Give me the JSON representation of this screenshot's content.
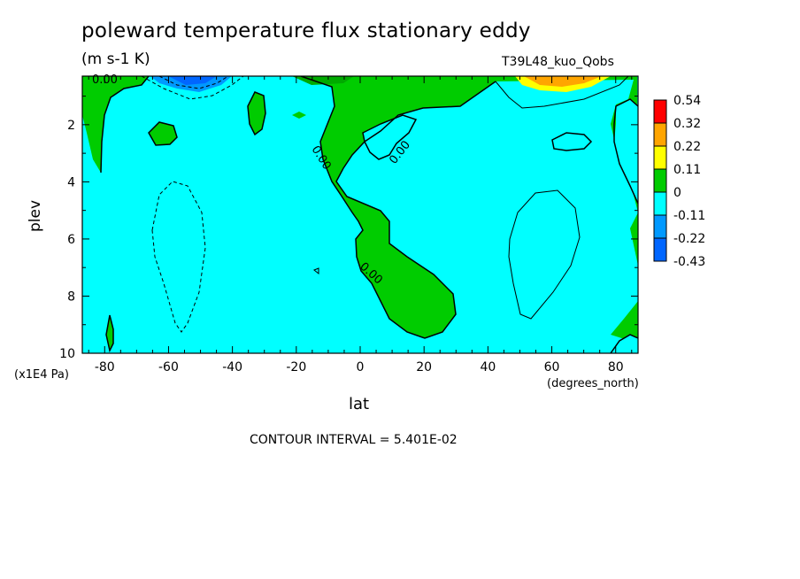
{
  "chart_data": {
    "type": "contour",
    "title": "poleward temperature flux stationary eddy",
    "units": "(m s-1 K)",
    "run_label": "T39L48_kuo_Qobs",
    "xlabel": "lat",
    "ylabel": "plev",
    "x_units": "(degrees_north)",
    "y_units": "(x1E4 Pa)",
    "xlim": [
      -87,
      87
    ],
    "ylim": [
      10,
      0.3
    ],
    "x_ticks": [
      "-80",
      "-60",
      "-40",
      "-20",
      "0",
      "20",
      "40",
      "60",
      "80"
    ],
    "x_tick_values": [
      -80,
      -60,
      -40,
      -20,
      0,
      20,
      40,
      60,
      80
    ],
    "y_ticks": [
      "2",
      "4",
      "6",
      "8",
      "10"
    ],
    "y_tick_values": [
      2,
      4,
      6,
      8,
      10
    ],
    "contour_interval_text": "CONTOUR INTERVAL = 5.401E-02",
    "contour_labels": [
      "0.00",
      "0.00",
      "0.00",
      "0.00"
    ],
    "colorbar": {
      "levels": [
        "0.54",
        "0.32",
        "0.22",
        "0.11",
        "0",
        "-0.11",
        "-0.22",
        "-0.43"
      ],
      "colors": [
        "#ff0000",
        "#ffa500",
        "#ffff00",
        "#00cc00",
        "#00ffff",
        "#0099ff",
        "#0066ff"
      ]
    },
    "colors": {
      "positive_fill": "#00cc00",
      "negative_fill": "#00ffff",
      "strong_positive": "#ffff00",
      "stronger_positive": "#ffa500",
      "strong_negative": "#0099ff",
      "stronger_negative": "#0066ff"
    }
  }
}
